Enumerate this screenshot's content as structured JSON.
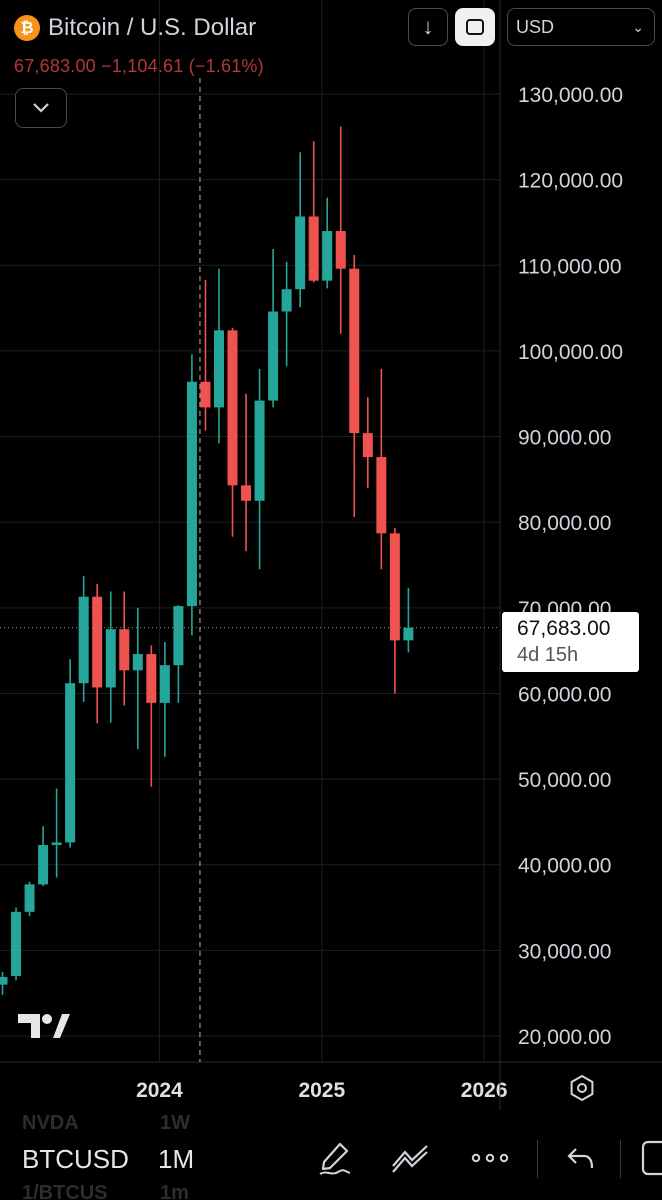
{
  "header": {
    "symbol_icon": "bitcoin-icon",
    "symbol_glyph": "₿",
    "title": "Bitcoin / U.S. Dollar",
    "last_price": "67,683.00",
    "change": "−1,104.61",
    "change_percent": "(−1.61%)",
    "currency": "USD",
    "change_color": "#b2373a"
  },
  "price_tag": {
    "price": "67,683.00",
    "countdown": "4d 15h"
  },
  "bottom_bar": {
    "symbol": "BTCUSD",
    "interval": "1M",
    "ghost_above_symbol": "NVDA",
    "ghost_above_interval": "1W",
    "ghost_below_symbol": "1/BTCUS",
    "ghost_below_interval": "1m",
    "icons": [
      "draw-pen-icon",
      "trendline-icon",
      "more-icon",
      "undo-icon",
      "fullscreen-icon"
    ]
  },
  "colors": {
    "up": "#26a69a",
    "down": "#ef5350",
    "grid": "#1e1e1e",
    "axis_text": "#d1d4dc"
  },
  "chart_data": {
    "type": "candlestick",
    "interval": "1M",
    "ylim": [
      20000,
      130000
    ],
    "y_ticks": [
      "130,000.00",
      "120,000.00",
      "110,000.00",
      "100,000.00",
      "90,000.00",
      "80,000.00",
      "70,000.00",
      "60,000.00",
      "50,000.00",
      "40,000.00",
      "30,000.00",
      "20,000.00"
    ],
    "y_tick_values": [
      130000,
      120000,
      110000,
      100000,
      90000,
      80000,
      70000,
      60000,
      50000,
      40000,
      30000,
      20000
    ],
    "x_ticks": [
      "2024",
      "2025",
      "2026"
    ],
    "x_tick_month_index": [
      12,
      24,
      36
    ],
    "last_price_value": 67683,
    "crosshair_month_index": 15,
    "candles": [
      {
        "i": 0,
        "o": 26000,
        "h": 27500,
        "l": 24800,
        "c": 26900
      },
      {
        "i": 1,
        "o": 27000,
        "h": 35000,
        "l": 26500,
        "c": 34500
      },
      {
        "i": 2,
        "o": 34500,
        "h": 38000,
        "l": 34000,
        "c": 37700
      },
      {
        "i": 3,
        "o": 37700,
        "h": 44500,
        "l": 37500,
        "c": 42300
      },
      {
        "i": 4,
        "o": 42300,
        "h": 48900,
        "l": 38500,
        "c": 42600
      },
      {
        "i": 5,
        "o": 42600,
        "h": 64000,
        "l": 42000,
        "c": 61200
      },
      {
        "i": 6,
        "o": 61200,
        "h": 73700,
        "l": 59000,
        "c": 71300
      },
      {
        "i": 7,
        "o": 71300,
        "h": 72800,
        "l": 56500,
        "c": 60700
      },
      {
        "i": 8,
        "o": 60700,
        "h": 71900,
        "l": 56600,
        "c": 67500
      },
      {
        "i": 9,
        "o": 67500,
        "h": 71900,
        "l": 58600,
        "c": 62700
      },
      {
        "i": 10,
        "o": 62700,
        "h": 70000,
        "l": 53500,
        "c": 64600
      },
      {
        "i": 11,
        "o": 64600,
        "h": 65600,
        "l": 49100,
        "c": 58900
      },
      {
        "i": 12,
        "o": 58900,
        "h": 66000,
        "l": 52600,
        "c": 63300
      },
      {
        "i": 13,
        "o": 63300,
        "h": 70300,
        "l": 58900,
        "c": 70200
      },
      {
        "i": 14,
        "o": 70200,
        "h": 99600,
        "l": 66800,
        "c": 96400
      },
      {
        "i": 15,
        "o": 96400,
        "h": 108300,
        "l": 90700,
        "c": 93400
      },
      {
        "i": 16,
        "o": 93400,
        "h": 109600,
        "l": 89200,
        "c": 102400
      },
      {
        "i": 17,
        "o": 102400,
        "h": 102700,
        "l": 78300,
        "c": 84300
      },
      {
        "i": 18,
        "o": 84300,
        "h": 95000,
        "l": 76600,
        "c": 82500
      },
      {
        "i": 19,
        "o": 82500,
        "h": 97900,
        "l": 74500,
        "c": 94200
      },
      {
        "i": 20,
        "o": 94200,
        "h": 111900,
        "l": 93400,
        "c": 104600
      },
      {
        "i": 21,
        "o": 104600,
        "h": 110400,
        "l": 98200,
        "c": 107200
      },
      {
        "i": 22,
        "o": 107200,
        "h": 123200,
        "l": 105100,
        "c": 115700
      },
      {
        "i": 23,
        "o": 115700,
        "h": 124500,
        "l": 108000,
        "c": 108200
      },
      {
        "i": 24,
        "o": 108200,
        "h": 117900,
        "l": 107300,
        "c": 114000
      },
      {
        "i": 25,
        "o": 114000,
        "h": 126200,
        "l": 102000,
        "c": 109600
      },
      {
        "i": 26,
        "o": 109600,
        "h": 111200,
        "l": 80600,
        "c": 90400
      },
      {
        "i": 27,
        "o": 90400,
        "h": 94600,
        "l": 84000,
        "c": 87600
      },
      {
        "i": 28,
        "o": 87600,
        "h": 97900,
        "l": 74500,
        "c": 78700
      },
      {
        "i": 29,
        "o": 78700,
        "h": 79300,
        "l": 60000,
        "c": 66200
      },
      {
        "i": 30,
        "o": 66200,
        "h": 72300,
        "l": 64800,
        "c": 67683
      }
    ]
  }
}
